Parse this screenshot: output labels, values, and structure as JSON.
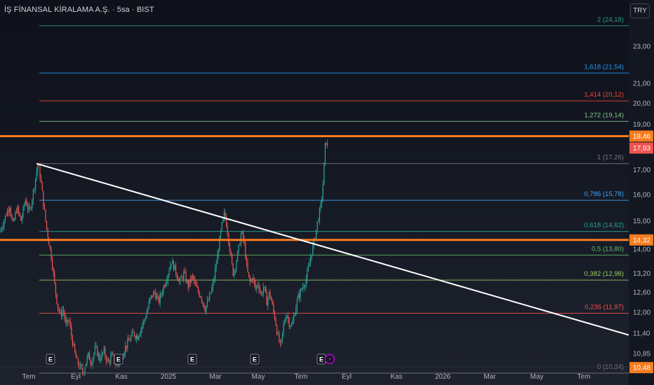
{
  "header": {
    "symbol": "İŞ FİNANSAL KİRALAMA A.Ş. · 5sa · BIST",
    "currency": "TRY"
  },
  "colors": {
    "background": "#131722",
    "up_candle": "#26a69a",
    "down_candle": "#ef5350",
    "trendline": "#ffffff",
    "orange_level": "#f57c20",
    "event_icon": "#d500f9"
  },
  "chart_data": {
    "type": "candlestick",
    "title": "İŞ FİNANSAL KİRALAMA A.Ş. · 5sa · BIST",
    "currency": "TRY",
    "log_scale": true,
    "grid": false,
    "ylim": [
      10.2,
      24.7
    ],
    "x_tick_labels": [
      "Tem",
      "Eyl",
      "Kas",
      "2025",
      "Mar",
      "May",
      "Tem",
      "Eyl",
      "Kas",
      "2026",
      "Mar",
      "May",
      "Tem"
    ],
    "y_tick_labels": [
      "23,00",
      "21,00",
      "20,00",
      "19,00",
      "17,00",
      "16,00",
      "15,00",
      "14,00",
      "13,20",
      "12,60",
      "12,00",
      "11,40",
      "10,85"
    ],
    "y_tick_values": [
      23.0,
      21.0,
      20.0,
      19.0,
      17.0,
      16.0,
      15.0,
      14.0,
      13.2,
      12.6,
      12.0,
      11.4,
      10.85
    ],
    "fibonacci": [
      {
        "label": "2 (24,18)",
        "price": 24.18,
        "color": "#2a9d8f"
      },
      {
        "label": "1,618 (21,54)",
        "price": 21.54,
        "color": "#2196f3"
      },
      {
        "label": "1,414 (20,12)",
        "price": 20.12,
        "color": "#f44336"
      },
      {
        "label": "1,272 (19,14)",
        "price": 19.14,
        "color": "#81c784"
      },
      {
        "label": "1 (17,26)",
        "price": 17.26,
        "color": "#787b86"
      },
      {
        "label": "0,786 (15,78)",
        "price": 15.78,
        "color": "#42a5f5"
      },
      {
        "label": "0,618 (14,62)",
        "price": 14.62,
        "color": "#26a69a"
      },
      {
        "label": "0,5 (13,80)",
        "price": 13.8,
        "color": "#66bb6a"
      },
      {
        "label": "0,382 (12,98)",
        "price": 12.98,
        "color": "#9ccc65"
      },
      {
        "label": "0,236 (11,97)",
        "price": 11.97,
        "color": "#ef5350"
      },
      {
        "label": "0 (10,34)",
        "price": 10.34,
        "color": "#787b86"
      }
    ],
    "horizontal_levels": [
      {
        "label": "18,46",
        "price": 18.46,
        "color": "#f57c20"
      },
      {
        "label": "14,32",
        "price": 14.32,
        "color": "#f57c20"
      }
    ],
    "last_price": {
      "label": "17,93",
      "price": 17.93,
      "color": "#ef5350"
    },
    "low_badge": {
      "label": "10,48",
      "price": 10.48,
      "color": "#f57c20"
    },
    "trendline": {
      "from": {
        "date": "2024-07",
        "price": 17.26
      },
      "to": {
        "date": "2026-07",
        "price": 11.35
      }
    },
    "events": [
      {
        "label": "E",
        "date": "2024-07"
      },
      {
        "label": "E",
        "date": "2024-10"
      },
      {
        "label": "E",
        "date": "2025-01"
      },
      {
        "label": "E",
        "date": "2025-04"
      },
      {
        "label": "E",
        "date": "2025-07"
      },
      {
        "label": "⚡",
        "date": "2025-07"
      }
    ],
    "price_path": [
      [
        0,
        14.6
      ],
      [
        8,
        15.2
      ],
      [
        14,
        15.6
      ],
      [
        18,
        14.8
      ],
      [
        24,
        15.5
      ],
      [
        30,
        15.0
      ],
      [
        36,
        15.8
      ],
      [
        42,
        15.3
      ],
      [
        48,
        16.2
      ],
      [
        54,
        17.26
      ],
      [
        58,
        16.6
      ],
      [
        62,
        15.6
      ],
      [
        66,
        14.8
      ],
      [
        70,
        14.2
      ],
      [
        74,
        13.6
      ],
      [
        78,
        12.8
      ],
      [
        82,
        12.2
      ],
      [
        86,
        11.9
      ],
      [
        90,
        12.1
      ],
      [
        94,
        11.6
      ],
      [
        98,
        11.8
      ],
      [
        102,
        11.3
      ],
      [
        106,
        10.9
      ],
      [
        110,
        10.6
      ],
      [
        114,
        10.5
      ],
      [
        118,
        10.34
      ],
      [
        122,
        10.6
      ],
      [
        126,
        10.8
      ],
      [
        130,
        10.6
      ],
      [
        136,
        11.0
      ],
      [
        142,
        10.7
      ],
      [
        148,
        10.9
      ],
      [
        154,
        10.6
      ],
      [
        160,
        10.8
      ],
      [
        166,
        10.5
      ],
      [
        172,
        10.7
      ],
      [
        178,
        11.0
      ],
      [
        184,
        11.2
      ],
      [
        190,
        11.4
      ],
      [
        196,
        11.3
      ],
      [
        202,
        11.6
      ],
      [
        208,
        11.9
      ],
      [
        214,
        12.4
      ],
      [
        220,
        12.6
      ],
      [
        226,
        12.3
      ],
      [
        232,
        12.7
      ],
      [
        238,
        13.1
      ],
      [
        244,
        13.6
      ],
      [
        250,
        13.3
      ],
      [
        256,
        12.9
      ],
      [
        262,
        13.2
      ],
      [
        268,
        12.8
      ],
      [
        274,
        13.1
      ],
      [
        280,
        12.7
      ],
      [
        286,
        12.5
      ],
      [
        292,
        12.1
      ],
      [
        298,
        12.4
      ],
      [
        304,
        12.9
      ],
      [
        310,
        13.8
      ],
      [
        316,
        14.8
      ],
      [
        320,
        15.3
      ],
      [
        324,
        14.7
      ],
      [
        328,
        13.9
      ],
      [
        332,
        13.2
      ],
      [
        336,
        13.5
      ],
      [
        340,
        14.0
      ],
      [
        344,
        14.6
      ],
      [
        348,
        14.2
      ],
      [
        352,
        13.3
      ],
      [
        356,
        12.9
      ],
      [
        360,
        13.1
      ],
      [
        364,
        12.7
      ],
      [
        368,
        12.9
      ],
      [
        372,
        12.5
      ],
      [
        376,
        12.8
      ],
      [
        380,
        12.3
      ],
      [
        384,
        12.6
      ],
      [
        388,
        12.2
      ],
      [
        392,
        11.8
      ],
      [
        396,
        11.3
      ],
      [
        400,
        11.0
      ],
      [
        404,
        11.6
      ],
      [
        408,
        12.0
      ],
      [
        412,
        11.7
      ],
      [
        416,
        11.6
      ],
      [
        420,
        12.0
      ],
      [
        424,
        12.4
      ],
      [
        428,
        12.6
      ],
      [
        432,
        12.8
      ],
      [
        436,
        13.0
      ],
      [
        440,
        13.4
      ],
      [
        444,
        13.9
      ],
      [
        448,
        14.3
      ],
      [
        452,
        14.9
      ],
      [
        456,
        15.4
      ],
      [
        458,
        15.7
      ],
      [
        460,
        16.3
      ],
      [
        462,
        17.3
      ],
      [
        464,
        18.3
      ],
      [
        466,
        18.1
      ],
      [
        468,
        17.93
      ]
    ]
  }
}
